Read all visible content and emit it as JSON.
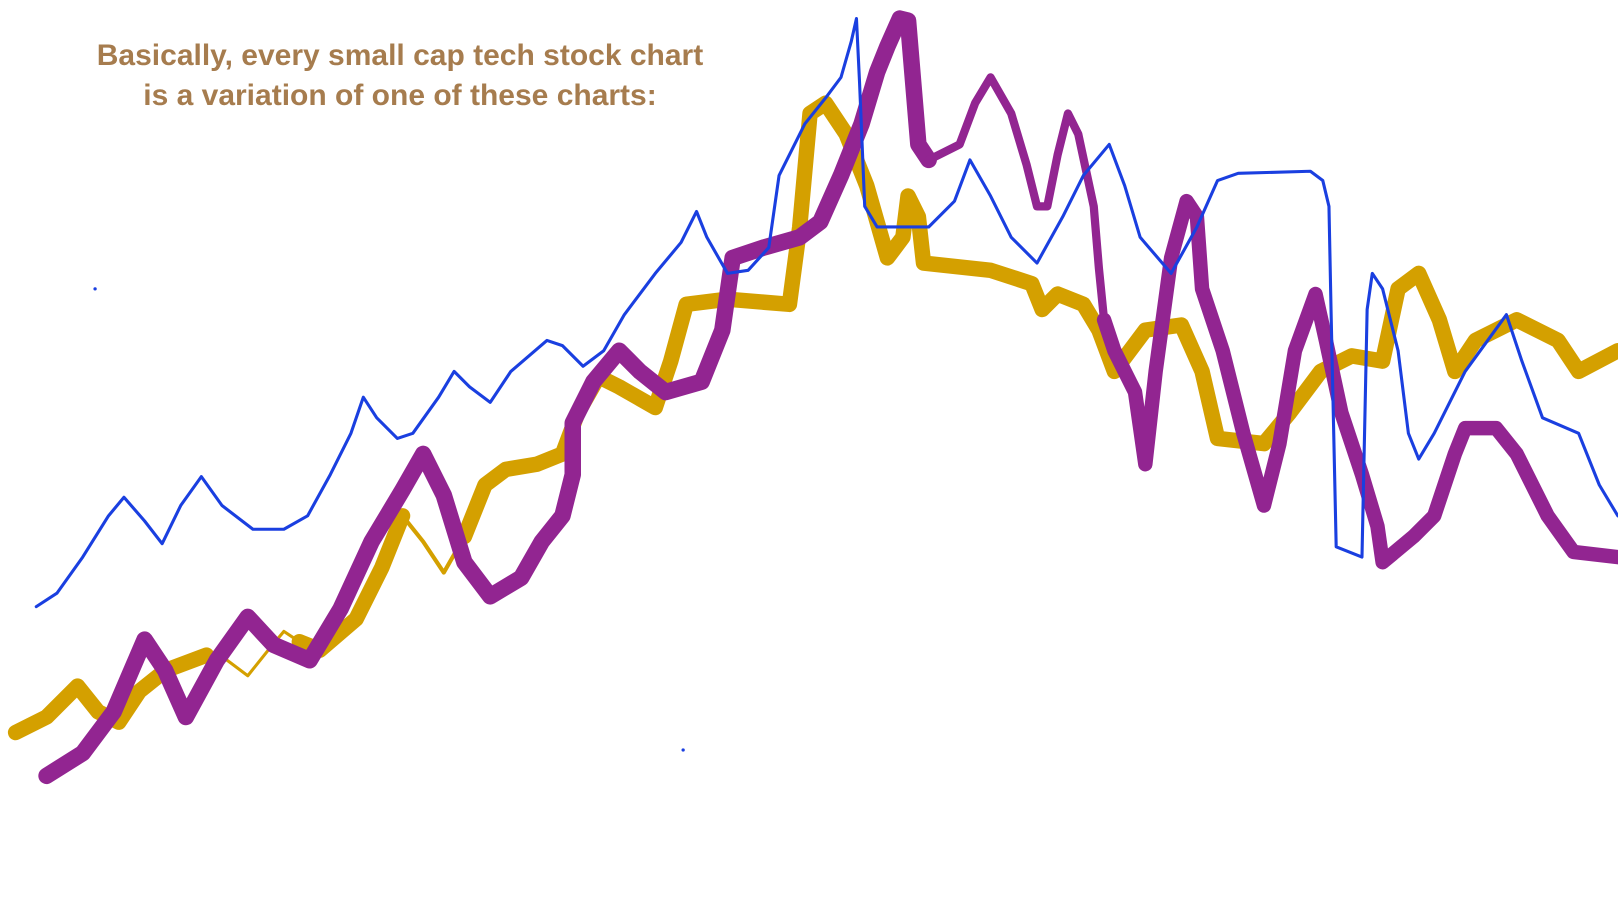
{
  "caption": {
    "lines": [
      "Basically, every small cap tech stock chart",
      "is a variation of one of these charts:"
    ]
  }
}
